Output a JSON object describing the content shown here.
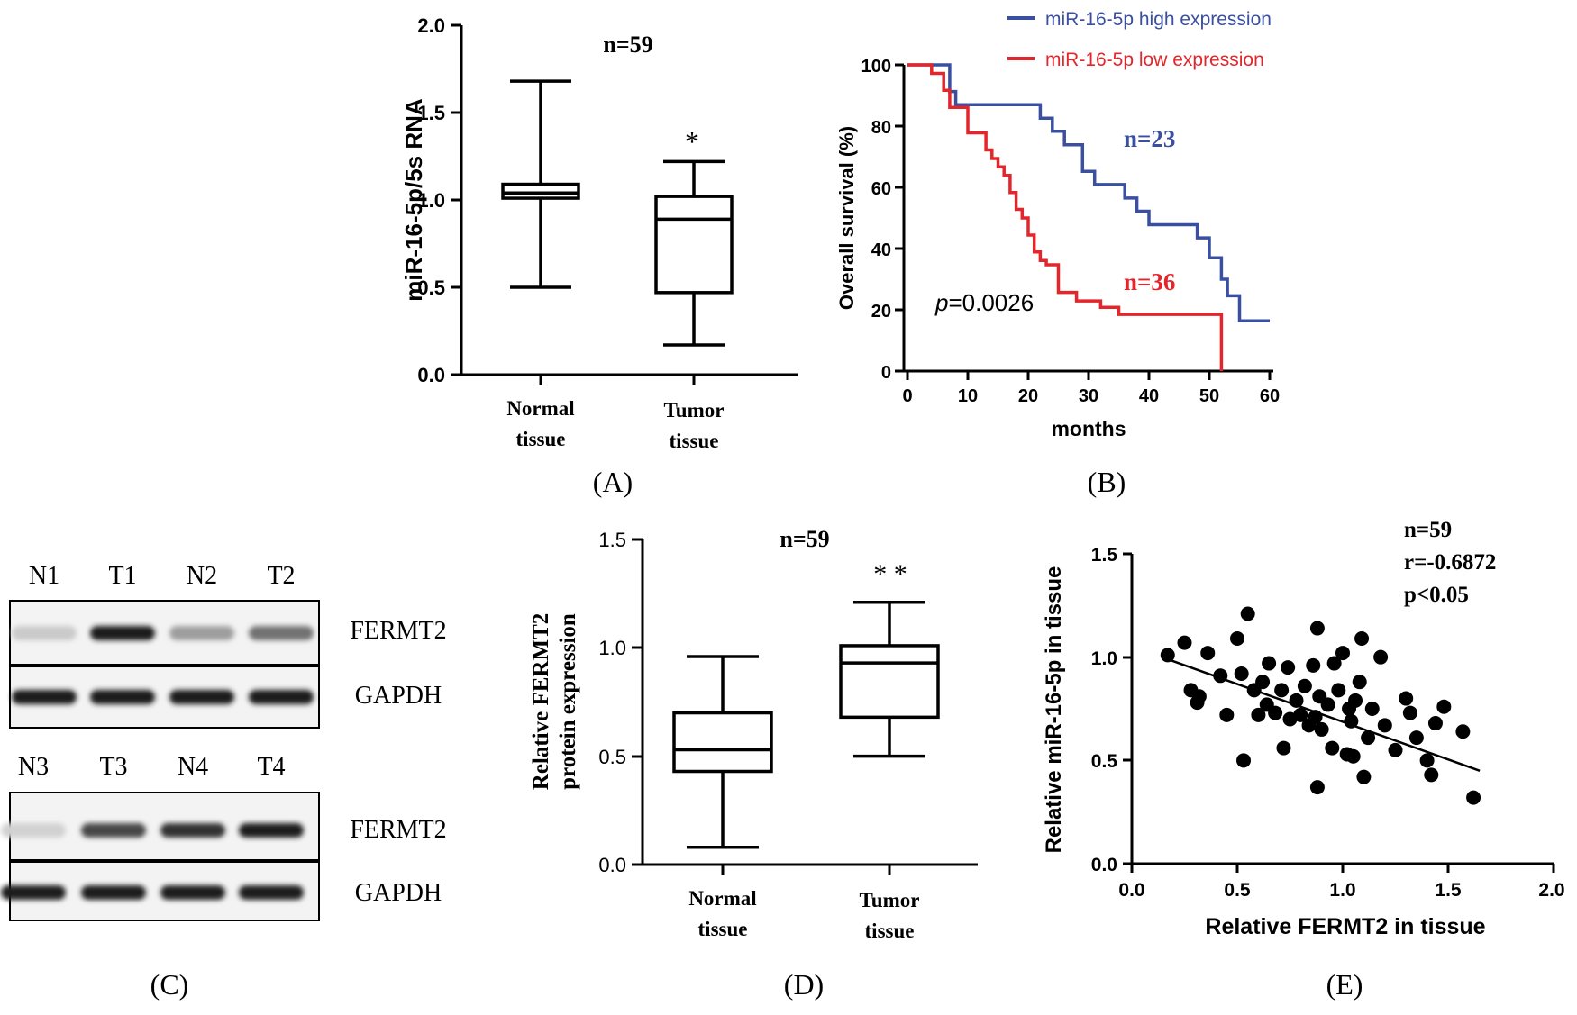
{
  "colors": {
    "ink": "#000000",
    "high": "#3a4fa0",
    "low": "#e3262b"
  },
  "panel_labels": {
    "a": "(A)",
    "b": "(B)",
    "c": "(C)",
    "d": "(D)",
    "e": "(E)"
  },
  "western_blot": {
    "row1_lanes": [
      "N1",
      "T1",
      "N2",
      "T2"
    ],
    "row2_lanes": [
      "N3",
      "T3",
      "N4",
      "T4"
    ],
    "bands": [
      "FERMT2",
      "GAPDH"
    ],
    "fermt2_row1_intensity": [
      0.15,
      0.95,
      0.35,
      0.55
    ],
    "gapdh_row1_intensity": [
      0.95,
      0.95,
      0.95,
      0.95
    ],
    "fermt2_row2_intensity": [
      0.12,
      0.75,
      0.85,
      0.95
    ],
    "gapdh_row2_intensity": [
      0.95,
      0.95,
      0.95,
      0.95
    ]
  },
  "chart_data": [
    {
      "id": "A",
      "type": "box",
      "annotation": "n=59",
      "ylabel": "miR-16-5p/5s RNA",
      "ylim": [
        0,
        2
      ],
      "yticks": [
        "0.0",
        "0.5",
        "1.0",
        "1.5",
        "2.0"
      ],
      "groups": [
        {
          "label_line1": "Normal",
          "label_line2": "tissue",
          "min": 0.5,
          "q1": 1.01,
          "median": 1.04,
          "q3": 1.09,
          "max": 1.68,
          "mark": ""
        },
        {
          "label_line1": "Tumor",
          "label_line2": "tissue",
          "min": 0.17,
          "q1": 0.47,
          "median": 0.89,
          "q3": 1.02,
          "max": 1.22,
          "mark": "*"
        }
      ]
    },
    {
      "id": "B",
      "type": "line",
      "title": "",
      "xlabel": "months",
      "ylabel": "Overall survival (%)",
      "xlim": [
        0,
        60
      ],
      "ylim": [
        0,
        100
      ],
      "xticks": [
        "0",
        "10",
        "20",
        "30",
        "40",
        "50",
        "60"
      ],
      "yticks": [
        "0",
        "20",
        "40",
        "60",
        "80",
        "100"
      ],
      "p_prefix": "p",
      "p_value": "=0.0026",
      "series": [
        {
          "name": "miR-16-5p high expression",
          "n_label": "n=23",
          "color": "#3a4fa0",
          "x": [
            0,
            7,
            7,
            8,
            8,
            12,
            12,
            17,
            17,
            22,
            22,
            24,
            24,
            26,
            26,
            29,
            29,
            31,
            31,
            33,
            33,
            36,
            36,
            38,
            38,
            40,
            40,
            48,
            48,
            50,
            50,
            52,
            52,
            53,
            53,
            55,
            55,
            60
          ],
          "y": [
            100,
            100,
            91.3,
            91.3,
            87,
            87,
            87,
            87,
            87,
            87,
            82.6,
            82.6,
            78.3,
            78.3,
            73.9,
            73.9,
            65.2,
            65.2,
            60.9,
            60.9,
            60.9,
            60.9,
            56.5,
            56.5,
            52.2,
            52.2,
            47.8,
            47.8,
            43.5,
            43.5,
            37,
            37,
            30,
            30,
            24.6,
            24.6,
            16.4,
            16.4
          ]
        },
        {
          "name": "miR-16-5p low expression",
          "n_label": "n=36",
          "color": "#e3262b",
          "x": [
            0,
            4,
            4,
            6,
            6,
            7,
            7,
            10,
            10,
            13,
            13,
            14,
            14,
            15,
            15,
            16,
            16,
            17,
            17,
            18,
            18,
            19,
            19,
            20,
            20,
            21,
            21,
            22,
            22,
            23,
            23,
            25,
            25,
            28,
            28,
            32,
            32,
            35,
            35,
            52,
            52
          ],
          "y": [
            100,
            100,
            97.2,
            97.2,
            91.7,
            91.7,
            86.1,
            86.1,
            77.8,
            77.8,
            72.2,
            72.2,
            69.4,
            69.4,
            66.7,
            66.7,
            63.9,
            63.9,
            58.3,
            58.3,
            52.8,
            52.8,
            50,
            50,
            44.4,
            44.4,
            38.9,
            38.9,
            36.1,
            36.1,
            34.7,
            34.7,
            25.7,
            25.7,
            22.9,
            22.9,
            20.8,
            20.8,
            18.5,
            18.5,
            0
          ]
        }
      ]
    },
    {
      "id": "D",
      "type": "box",
      "annotation": "n=59",
      "ylabel_line1": "Relative FERMT2",
      "ylabel_line2": "protein expression",
      "ylim": [
        0,
        1.5
      ],
      "yticks": [
        "0.0",
        "0.5",
        "1.0",
        "1.5"
      ],
      "groups": [
        {
          "label_line1": "Normal",
          "label_line2": "tissue",
          "min": 0.08,
          "q1": 0.43,
          "median": 0.53,
          "q3": 0.7,
          "max": 0.96,
          "mark": ""
        },
        {
          "label_line1": "Tumor",
          "label_line2": "tissue",
          "min": 0.5,
          "q1": 0.68,
          "median": 0.93,
          "q3": 1.01,
          "max": 1.21,
          "mark": "* *"
        }
      ]
    },
    {
      "id": "E",
      "type": "scatter",
      "xlabel": "Relative  FERMT2 in tissue",
      "ylabel": "Relative miR-16-5p in tissue",
      "xlim": [
        0,
        2
      ],
      "ylim": [
        0,
        1.5
      ],
      "xticks": [
        "0.0",
        "0.5",
        "1.0",
        "1.5",
        "2.0"
      ],
      "yticks": [
        "0.0",
        "0.5",
        "1.0",
        "1.5"
      ],
      "stats": [
        "n=59",
        "r=-0.6872",
        "p<0.05"
      ],
      "fit": {
        "x": [
          0.17,
          1.65
        ],
        "y": [
          0.99,
          0.45
        ]
      },
      "points": [
        [
          0.17,
          1.01
        ],
        [
          0.25,
          1.07
        ],
        [
          0.28,
          0.84
        ],
        [
          0.31,
          0.78
        ],
        [
          0.32,
          0.81
        ],
        [
          0.36,
          1.02
        ],
        [
          0.42,
          0.91
        ],
        [
          0.45,
          0.72
        ],
        [
          0.5,
          1.09
        ],
        [
          0.52,
          0.92
        ],
        [
          0.53,
          0.5
        ],
        [
          0.55,
          1.21
        ],
        [
          0.58,
          0.84
        ],
        [
          0.6,
          0.72
        ],
        [
          0.62,
          0.88
        ],
        [
          0.64,
          0.77
        ],
        [
          0.65,
          0.97
        ],
        [
          0.68,
          0.73
        ],
        [
          0.71,
          0.84
        ],
        [
          0.72,
          0.56
        ],
        [
          0.74,
          0.95
        ],
        [
          0.75,
          0.7
        ],
        [
          0.78,
          0.79
        ],
        [
          0.8,
          0.72
        ],
        [
          0.82,
          0.86
        ],
        [
          0.84,
          0.67
        ],
        [
          0.86,
          0.96
        ],
        [
          0.87,
          0.71
        ],
        [
          0.88,
          1.14
        ],
        [
          0.88,
          0.37
        ],
        [
          0.89,
          0.81
        ],
        [
          0.9,
          0.65
        ],
        [
          0.93,
          0.77
        ],
        [
          0.95,
          0.56
        ],
        [
          0.96,
          0.97
        ],
        [
          0.98,
          0.84
        ],
        [
          1.0,
          1.02
        ],
        [
          1.02,
          0.53
        ],
        [
          1.03,
          0.75
        ],
        [
          1.04,
          0.69
        ],
        [
          1.05,
          0.52
        ],
        [
          1.06,
          0.79
        ],
        [
          1.08,
          0.88
        ],
        [
          1.09,
          1.09
        ],
        [
          1.1,
          0.42
        ],
        [
          1.12,
          0.61
        ],
        [
          1.14,
          0.75
        ],
        [
          1.18,
          1.0
        ],
        [
          1.2,
          0.67
        ],
        [
          1.25,
          0.55
        ],
        [
          1.3,
          0.8
        ],
        [
          1.32,
          0.73
        ],
        [
          1.35,
          0.61
        ],
        [
          1.4,
          0.5
        ],
        [
          1.42,
          0.43
        ],
        [
          1.44,
          0.68
        ],
        [
          1.48,
          0.76
        ],
        [
          1.57,
          0.64
        ],
        [
          1.62,
          0.32
        ]
      ]
    }
  ]
}
